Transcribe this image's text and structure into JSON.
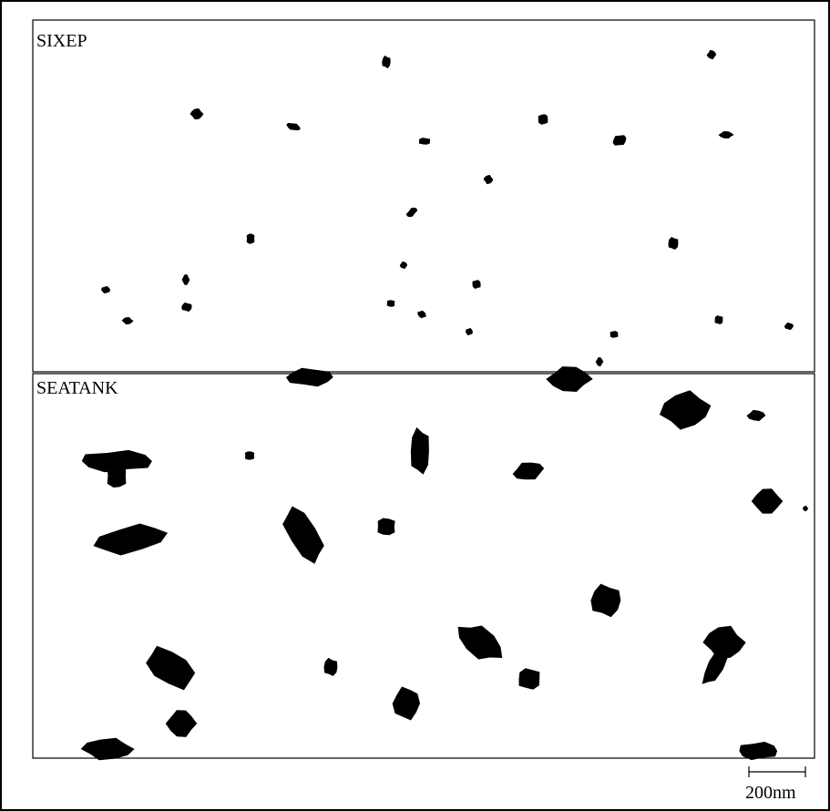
{
  "panels": [
    {
      "label": "SIXEP"
    },
    {
      "label": "SEATANK"
    }
  ],
  "scale_bar": {
    "label": "200nm"
  }
}
